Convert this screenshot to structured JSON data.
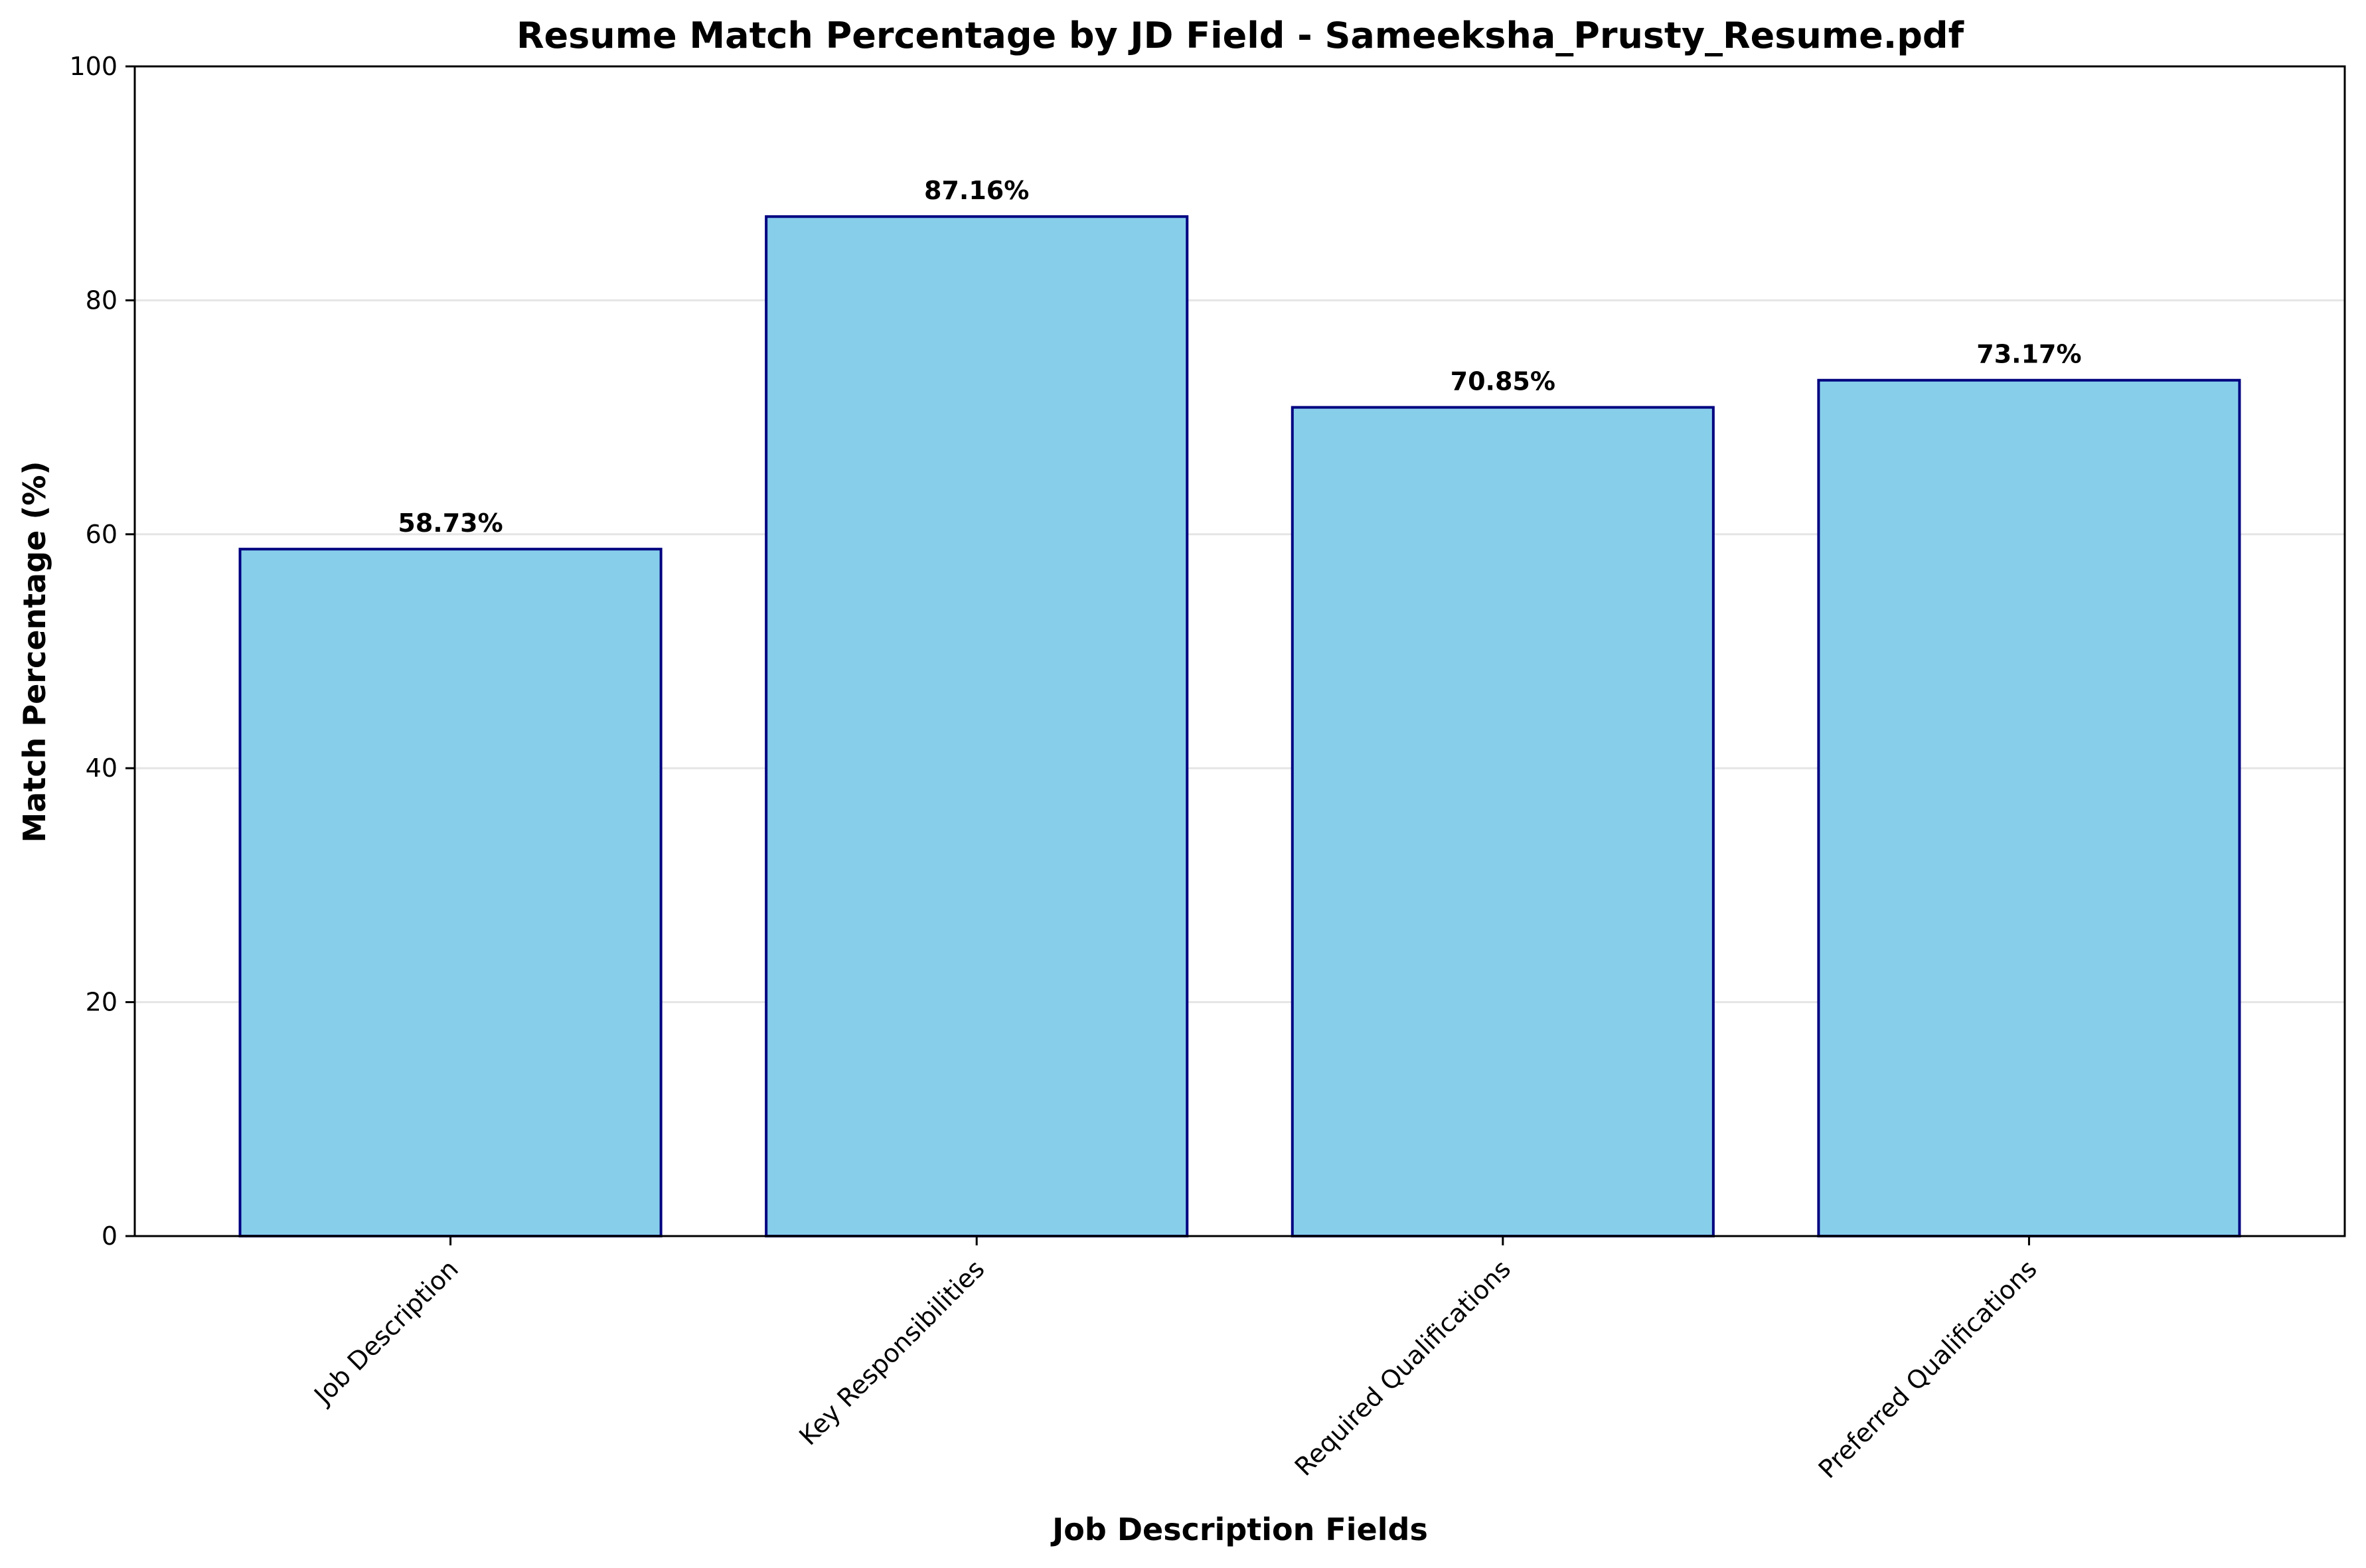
{
  "chart_data": {
    "type": "bar",
    "title": "Resume Match Percentage by JD Field - Sameeksha_Prusty_Resume.pdf",
    "xlabel": "Job Description Fields",
    "ylabel": "Match Percentage (%)",
    "categories": [
      "Job Description",
      "Key Responsibilities",
      "Required Qualifications",
      "Preferred Qualifications"
    ],
    "values": [
      58.73,
      87.16,
      70.85,
      73.17
    ],
    "value_labels": [
      "58.73%",
      "87.16%",
      "70.85%",
      "73.17%"
    ],
    "ylim": [
      0,
      100
    ],
    "yticks": [
      0,
      20,
      40,
      60,
      80,
      100
    ],
    "ytick_labels": [
      "0",
      "20",
      "40",
      "60",
      "80",
      "100"
    ],
    "grid": "horizontal",
    "legend": "none",
    "colors": {
      "bar_fill": "#87CEEB",
      "bar_edge": "#000080",
      "grid": "#e5e5e5"
    }
  }
}
